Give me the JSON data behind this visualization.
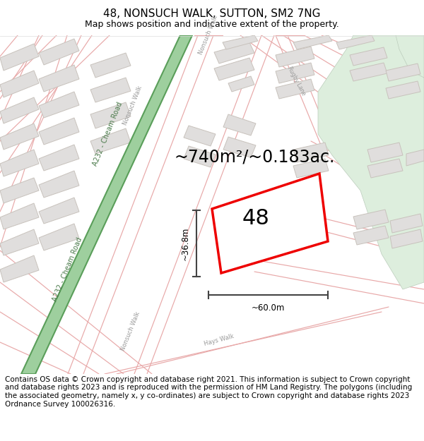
{
  "title": "48, NONSUCH WALK, SUTTON, SM2 7NG",
  "subtitle": "Map shows position and indicative extent of the property.",
  "area_text": "~740m²/~0.183ac.",
  "dim_width": "~60.0m",
  "dim_height": "~36.8m",
  "label_48": "48",
  "footnote": "Contains OS data © Crown copyright and database right 2021. This information is subject to Crown copyright and database rights 2023 and is reproduced with the permission of HM Land Registry. The polygons (including the associated geometry, namely x, y co-ordinates) are subject to Crown copyright and database rights 2023 Ordnance Survey 100026316.",
  "bg_white": "#ffffff",
  "map_bg": "#f8f8f6",
  "green_road_fill": "#9ecf9e",
  "green_road_edge": "#5a9e5a",
  "green_road_label_color": "#4a7a4a",
  "block_fill": "#e0dedd",
  "block_edge": "#c8c2bc",
  "road_color": "#e8a8a8",
  "road_label_color": "#999999",
  "highlight_red": "#ee0000",
  "green_area_fill": "#ddeedd",
  "green_area_edge": "#bbccbb",
  "dim_line_color": "#444444",
  "title_fs": 11,
  "subtitle_fs": 9,
  "area_fs": 17,
  "footnote_fs": 7.5,
  "label_fs": 22,
  "dim_fs": 8.5,
  "road_label_fs": 6,
  "cheam_road_label_fs": 7,
  "rugby_lane_label_fs": 5.5
}
